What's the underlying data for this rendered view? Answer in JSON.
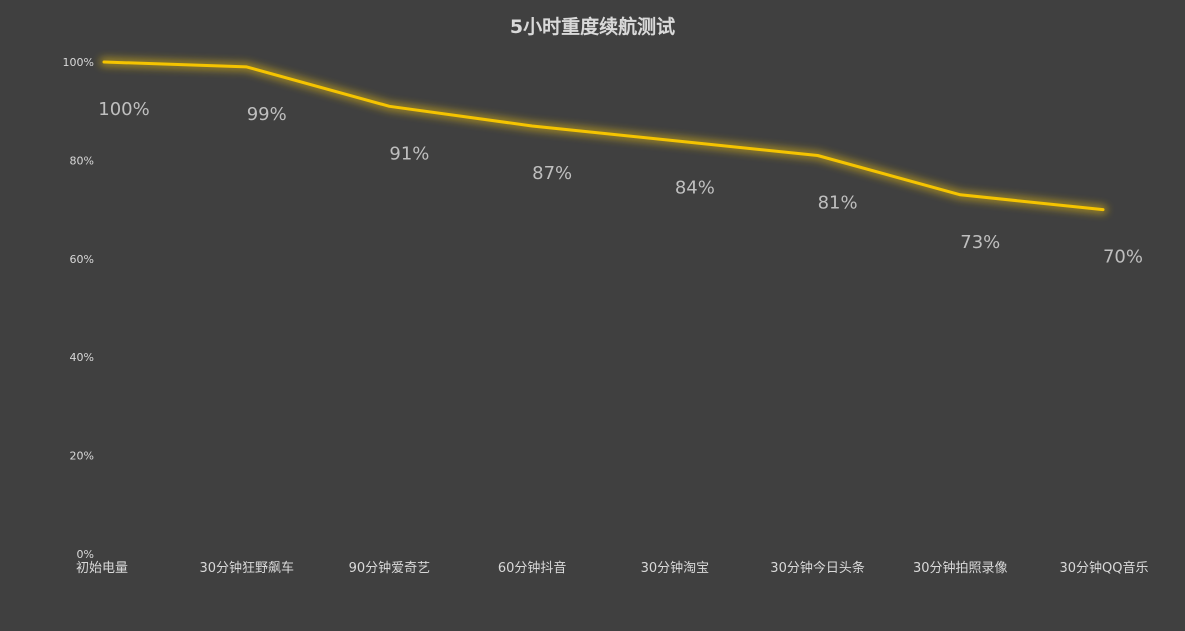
{
  "chart_data": {
    "type": "line",
    "title": "5小时重度续航测试",
    "categories": [
      "初始电量",
      "30分钟狂野飙车",
      "90分钟爱奇艺",
      "60分钟抖音",
      "30分钟淘宝",
      "30分钟今日头条",
      "30分钟拍照录像",
      "30分钟QQ音乐"
    ],
    "values": [
      100,
      99,
      91,
      87,
      84,
      81,
      73,
      70
    ],
    "data_labels": [
      "100%",
      "99%",
      "91%",
      "87%",
      "84%",
      "81%",
      "73%",
      "70%"
    ],
    "yticks": [
      "0%",
      "20%",
      "40%",
      "60%",
      "80%",
      "100%"
    ],
    "ylim": [
      0,
      100
    ],
    "grid": false,
    "legend": "none",
    "line_color": "#f5c400",
    "glow_color": "#b89a1a",
    "background": "#404040"
  }
}
